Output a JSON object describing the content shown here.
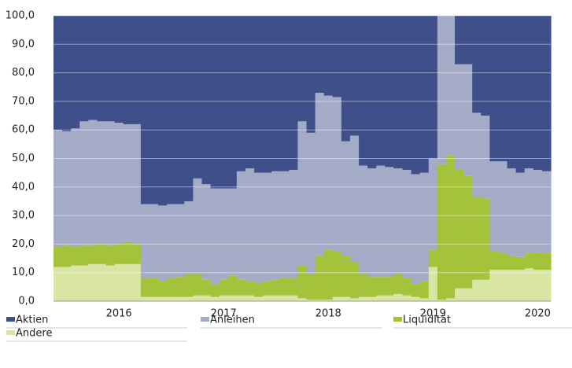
{
  "chart_data": {
    "type": "stacked_area_step",
    "categories": [
      null,
      null,
      null,
      null,
      null,
      null,
      null,
      "2016",
      null,
      null,
      null,
      null,
      null,
      null,
      null,
      null,
      null,
      null,
      null,
      "2017",
      null,
      null,
      null,
      null,
      null,
      null,
      null,
      null,
      null,
      null,
      null,
      "2018",
      null,
      null,
      null,
      null,
      null,
      null,
      null,
      null,
      null,
      null,
      null,
      "2019",
      null,
      null,
      null,
      null,
      null,
      null,
      null,
      null,
      null,
      null,
      null,
      "2020",
      null
    ],
    "series": [
      {
        "name": "Andere",
        "color": "#d9e5a3",
        "values": [
          12,
          12,
          12.5,
          12.5,
          13,
          13,
          12.5,
          13,
          13,
          13,
          1.5,
          1.5,
          1.5,
          1.5,
          1.5,
          1.5,
          2,
          2,
          1.5,
          2,
          2,
          2,
          2,
          1.5,
          2,
          2,
          2,
          2,
          1,
          0.5,
          0.5,
          0.5,
          1.5,
          1.5,
          1,
          1.5,
          1.5,
          2,
          2,
          2.5,
          2,
          1.5,
          1,
          12,
          0.5,
          1,
          4.5,
          4.5,
          7.5,
          7.5,
          11,
          11,
          11,
          11,
          11.5,
          11,
          11
        ]
      },
      {
        "name": "Liquidität",
        "color": "#a5c23b",
        "values": [
          7,
          7.5,
          6.5,
          7,
          6.5,
          7,
          7,
          7,
          8,
          7,
          6.5,
          6.5,
          5.5,
          6.5,
          7,
          8,
          7.5,
          5.5,
          4.5,
          5.5,
          7,
          5.5,
          5,
          5,
          5,
          5.5,
          6,
          6,
          11.5,
          9,
          15.5,
          17.5,
          16,
          14.5,
          12.5,
          8,
          7,
          6.5,
          6.5,
          7,
          6,
          4.5,
          6,
          6,
          47.5,
          50,
          41.5,
          39.5,
          29,
          28.5,
          6.5,
          6,
          5,
          4.5,
          5.5,
          6,
          6
        ]
      },
      {
        "name": "Anleihen",
        "color": "#a4abc7",
        "values": [
          41,
          40,
          41.5,
          43.5,
          44,
          43,
          43.5,
          42.5,
          41,
          42,
          26,
          26,
          26.5,
          26,
          25.5,
          25.5,
          33.5,
          33.5,
          33.5,
          32,
          30.5,
          38,
          39.5,
          38.5,
          38,
          38,
          37.5,
          38,
          50.5,
          49.5,
          57,
          54,
          54,
          40,
          44.5,
          38,
          38,
          39,
          38.5,
          37,
          38,
          38.5,
          38,
          32,
          52,
          49,
          37,
          39,
          29.5,
          29,
          31.5,
          32,
          30.5,
          29.5,
          29.5,
          29,
          28.5
        ]
      },
      {
        "name": "Aktien",
        "color": "#3f4f89",
        "values": [
          40,
          40.5,
          39.5,
          37,
          36.5,
          37,
          37,
          37.5,
          38,
          38,
          66,
          66,
          66.5,
          66,
          66,
          65,
          57,
          59,
          60.5,
          60.5,
          60.5,
          54.5,
          53.5,
          55,
          55,
          54.5,
          54.5,
          54,
          37,
          41,
          27,
          28,
          28.5,
          44,
          42,
          52.5,
          53.5,
          52.5,
          53,
          53.5,
          54,
          55.5,
          55,
          50,
          0,
          0,
          17,
          17,
          34,
          35,
          51,
          51,
          53.5,
          55,
          53.5,
          54,
          54.5
        ]
      }
    ],
    "ylim": [
      0,
      100
    ],
    "yticks": [
      {
        "value": 0,
        "label": "0,0"
      },
      {
        "value": 10,
        "label": "10,0"
      },
      {
        "value": 20,
        "label": "20,0"
      },
      {
        "value": 30,
        "label": "30,0"
      },
      {
        "value": 40,
        "label": "40,0"
      },
      {
        "value": 50,
        "label": "50,0"
      },
      {
        "value": 60,
        "label": "60,0"
      },
      {
        "value": 70,
        "label": "70,0"
      },
      {
        "value": 80,
        "label": "80,0"
      },
      {
        "value": 90,
        "label": "90,0"
      },
      {
        "value": 100,
        "label": "100,0"
      }
    ],
    "grid": true
  }
}
